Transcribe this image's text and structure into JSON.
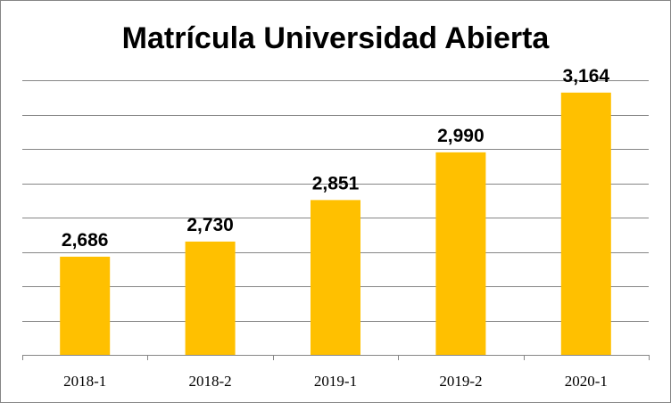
{
  "chart_data": {
    "type": "bar",
    "title": "Matrícula Universidad Abierta",
    "categories": [
      "2018-1",
      "2018-2",
      "2019-1",
      "2019-2",
      "2020-1"
    ],
    "values": [
      2686,
      2730,
      2851,
      2990,
      3164
    ],
    "value_labels": [
      "2,686",
      "2,730",
      "2,851",
      "2,990",
      "3,164"
    ],
    "xlabel": "",
    "ylabel": "",
    "ylim": [
      2400,
      3200
    ],
    "y_grid_step": 100,
    "grid": true,
    "y_tick_labels_visible": false,
    "legend": "none",
    "bar_color": "#FFC000"
  }
}
